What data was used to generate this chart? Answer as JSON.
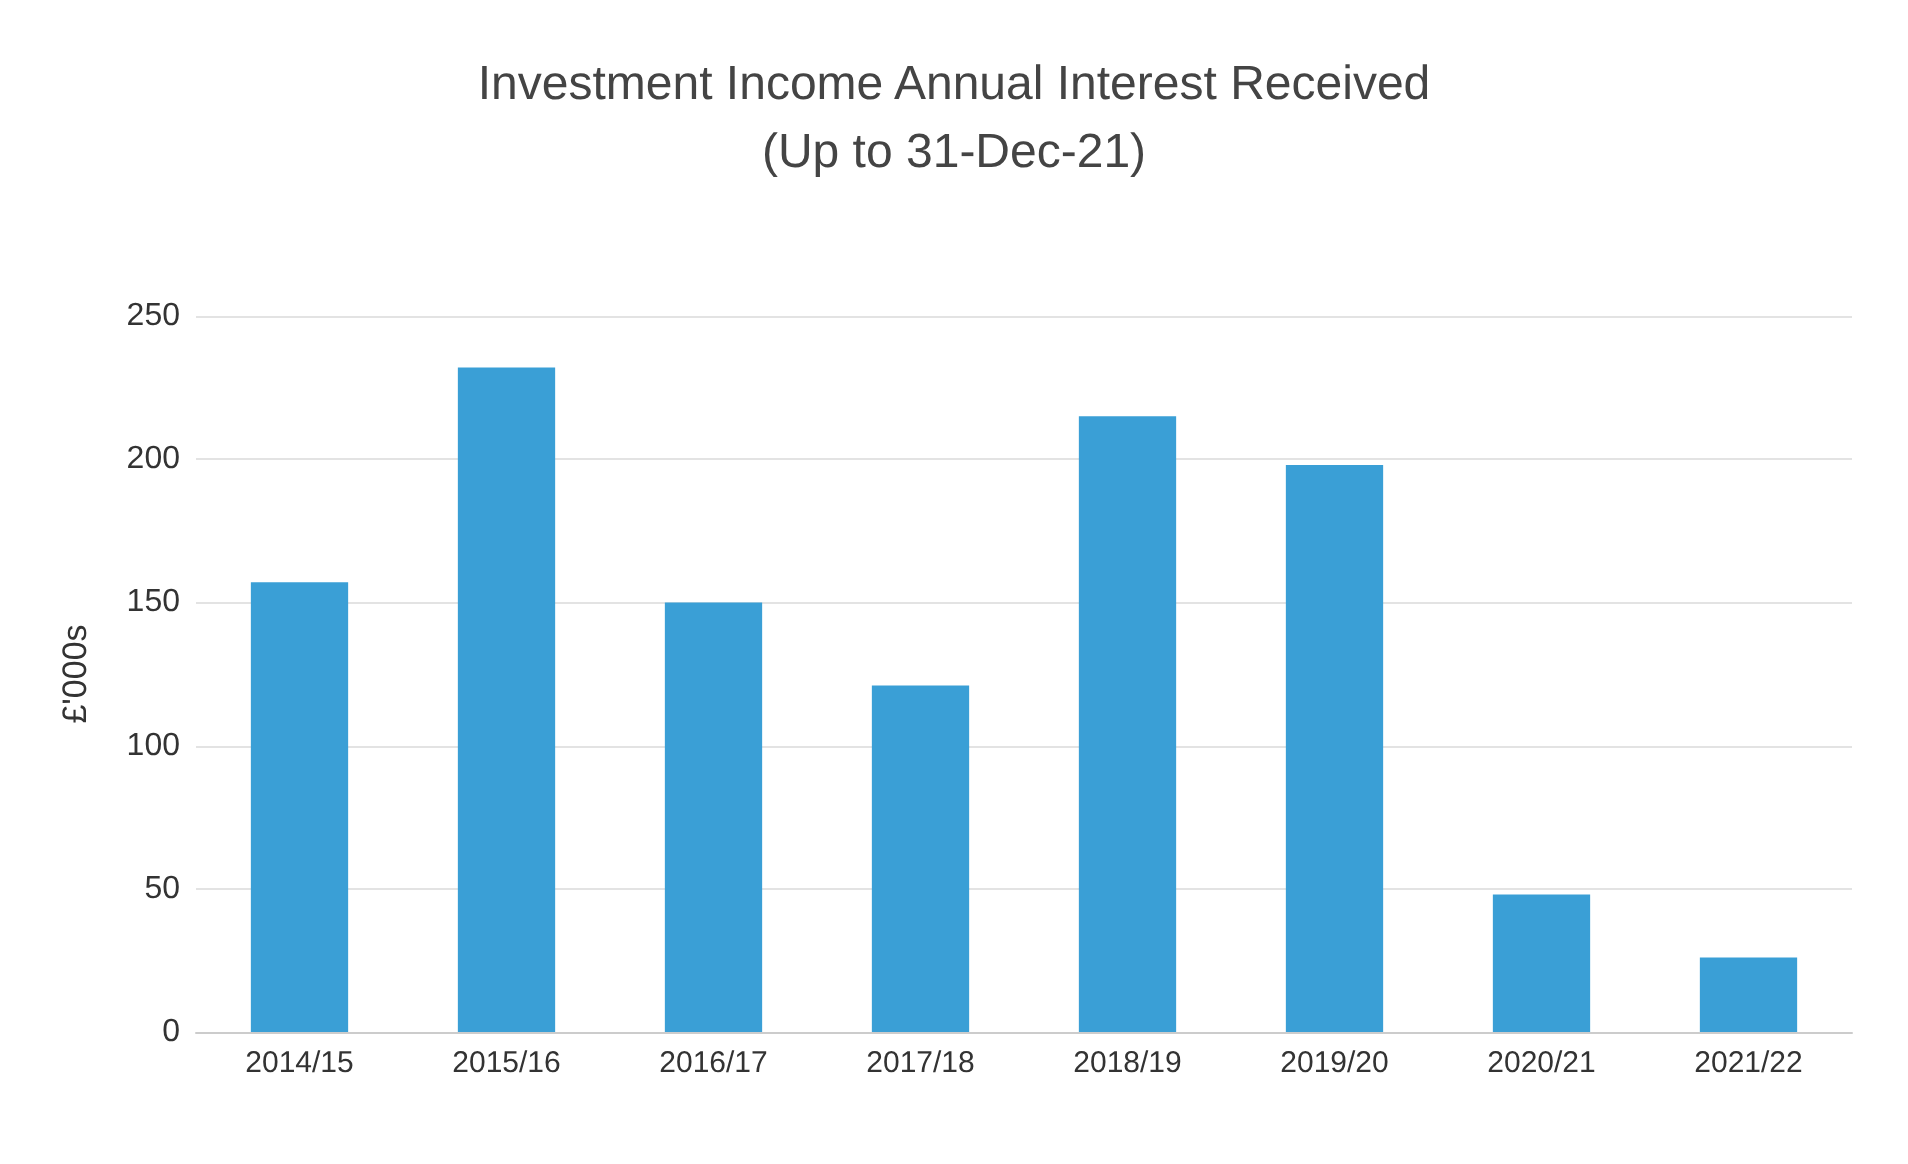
{
  "chart_data": {
    "type": "bar",
    "title": "Investment Income Annual Interest Received\n(Up to 31-Dec-21)",
    "ylabel": "£'000s",
    "categories": [
      "2014/15",
      "2015/16",
      "2016/17",
      "2017/18",
      "2018/19",
      "2019/20",
      "2020/21",
      "2021/22"
    ],
    "values": [
      157,
      232,
      150,
      121,
      215,
      198,
      48,
      26
    ],
    "color": "#3a9fd6",
    "ylim": [
      0,
      250
    ],
    "yticks": [
      0,
      50,
      100,
      150,
      200,
      250
    ],
    "grid": "y"
  }
}
